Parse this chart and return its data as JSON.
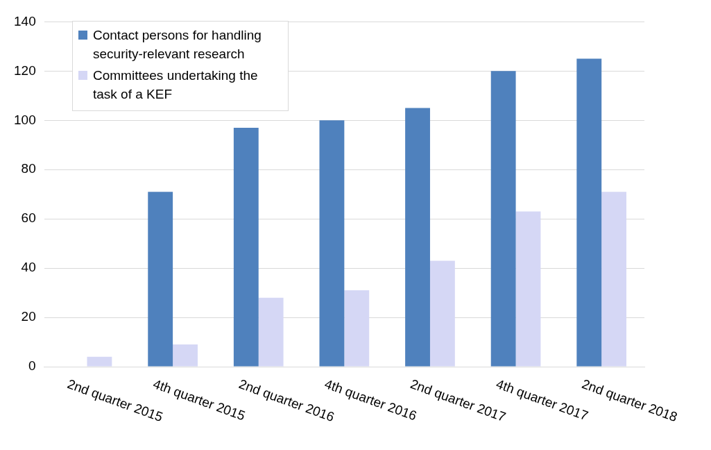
{
  "chart_data": {
    "type": "bar",
    "categories": [
      "2nd quarter 2015",
      "4th quarter 2015",
      "2nd quarter 2016",
      "4th quarter 2016",
      "2nd quarter 2017",
      "4th quarter 2017",
      "2nd quarter 2018"
    ],
    "series": [
      {
        "name": "Contact persons for handling security-relevant research",
        "color": "#4f81bd",
        "values": [
          null,
          71,
          97,
          100,
          105,
          120,
          125
        ]
      },
      {
        "name": "Committees undertaking the task of a KEF",
        "color": "#d5d7f5",
        "values": [
          4,
          9,
          28,
          31,
          43,
          63,
          71
        ]
      }
    ],
    "ylim": [
      0,
      140
    ],
    "yticks": [
      0,
      20,
      40,
      60,
      80,
      100,
      120,
      140
    ],
    "grid": "y",
    "legend": "top left"
  }
}
